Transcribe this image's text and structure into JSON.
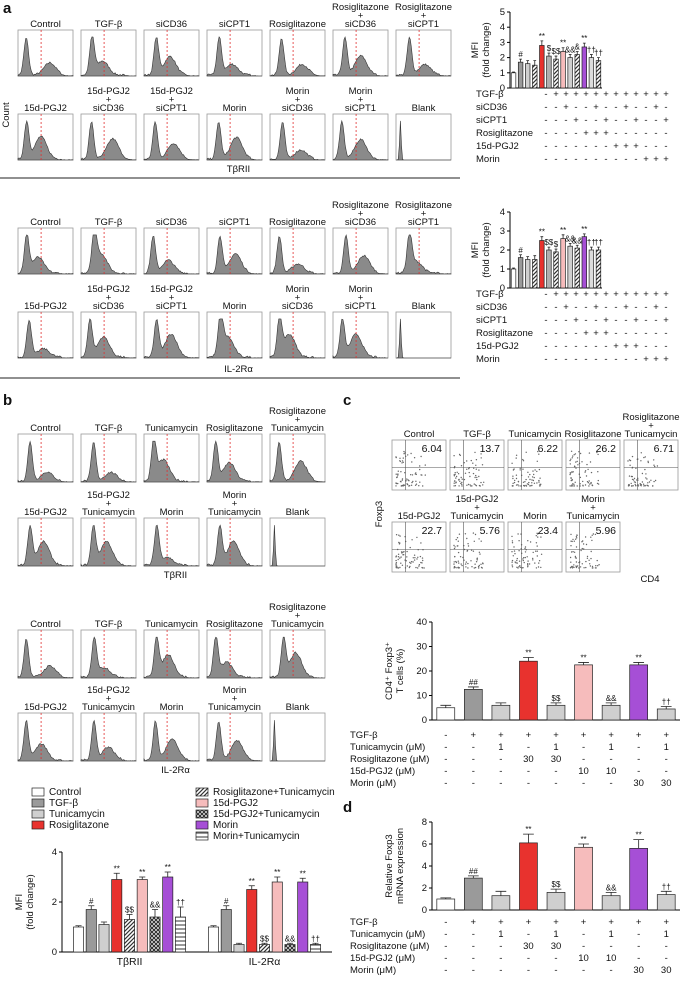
{
  "panel_a": {
    "label": "a",
    "tbrii_histograms": {
      "rows": [
        [
          [
            "Control"
          ],
          [
            "TGF-β"
          ],
          [
            "siCD36"
          ],
          [
            "siCPT1"
          ],
          [
            "Rosiglitazone"
          ],
          [
            "Rosiglitazone",
            "+",
            "siCD36"
          ],
          [
            "Rosiglitazone",
            "+",
            "siCPT1"
          ]
        ],
        [
          [
            "15d-PGJ2"
          ],
          [
            "15d-PGJ2",
            "+",
            "siCD36"
          ],
          [
            "15d-PGJ2",
            "+",
            "siCPT1"
          ],
          [
            "Morin"
          ],
          [
            "Morin",
            "+",
            "siCD36"
          ],
          [
            "Morin",
            "+",
            "siCPT1"
          ],
          [
            "Blank"
          ]
        ]
      ],
      "xlabel": "TβRII",
      "ylabel": "Count"
    },
    "tbrii_chart": {
      "type": "bar",
      "ylabel": [
        "MFI",
        "(fold change)"
      ],
      "ylim": [
        0,
        5
      ],
      "yticks": [
        0,
        1,
        2,
        3,
        4,
        5
      ],
      "values": [
        1.0,
        1.7,
        1.6,
        1.5,
        2.8,
        2.1,
        1.9,
        2.4,
        2.0,
        2.2,
        2.7,
        2.0,
        1.8
      ],
      "errors": [
        0.05,
        0.2,
        0.2,
        0.3,
        0.3,
        0.2,
        0.2,
        0.25,
        0.2,
        0.2,
        0.25,
        0.2,
        0.2
      ],
      "annotations": [
        null,
        "#",
        null,
        null,
        "**",
        "$",
        "$$",
        "**",
        "&&",
        "&",
        "**",
        "††",
        "††"
      ],
      "colors": [
        "#ffffff",
        "#9a9a9a",
        "#cfcfcf",
        "#333333",
        "#e8322e",
        "#b0b0b0",
        "#333333",
        "#f6bcbc",
        "#cfcfcf",
        "#333333",
        "#a64fd6",
        "#dcdcdc",
        "#333333"
      ],
      "hatch": [
        null,
        null,
        null,
        "diag",
        null,
        null,
        "diag",
        null,
        null,
        "diag",
        null,
        null,
        "diag"
      ],
      "table": [
        {
          "name": "TGF-β",
          "cells": [
            "-",
            "+",
            "+",
            "+",
            "+",
            "+",
            "+",
            "+",
            "+",
            "+",
            "+",
            "+",
            "+"
          ]
        },
        {
          "name": "siCD36",
          "cells": [
            "-",
            "-",
            "+",
            "-",
            "-",
            "+",
            "-",
            "-",
            "+",
            "-",
            "-",
            "+",
            "-"
          ]
        },
        {
          "name": "siCPT1",
          "cells": [
            "-",
            "-",
            "-",
            "+",
            "-",
            "-",
            "+",
            "-",
            "-",
            "+",
            "-",
            "-",
            "+"
          ]
        },
        {
          "name": "Rosiglitazone",
          "cells": [
            "-",
            "-",
            "-",
            "-",
            "+",
            "+",
            "+",
            "-",
            "-",
            "-",
            "-",
            "-",
            "-"
          ]
        },
        {
          "name": "15d-PGJ2",
          "cells": [
            "-",
            "-",
            "-",
            "-",
            "-",
            "-",
            "-",
            "+",
            "+",
            "+",
            "-",
            "-",
            "-"
          ]
        },
        {
          "name": "Morin",
          "cells": [
            "-",
            "-",
            "-",
            "-",
            "-",
            "-",
            "-",
            "-",
            "-",
            "-",
            "+",
            "+",
            "+"
          ]
        }
      ]
    },
    "il2ra_histograms": {
      "rows": [
        [
          [
            "Control"
          ],
          [
            "TGF-β"
          ],
          [
            "siCD36"
          ],
          [
            "siCPT1"
          ],
          [
            "Rosiglitazone"
          ],
          [
            "Rosiglitazone",
            "+",
            "siCD36"
          ],
          [
            "Rosiglitazone",
            "+",
            "siCPT1"
          ]
        ],
        [
          [
            "15d-PGJ2"
          ],
          [
            "15d-PGJ2",
            "+",
            "siCD36"
          ],
          [
            "15d-PGJ2",
            "+",
            "siCPT1"
          ],
          [
            "Morin"
          ],
          [
            "Morin",
            "+",
            "siCD36"
          ],
          [
            "Morin",
            "+",
            "siCPT1"
          ],
          [
            "Blank"
          ]
        ]
      ],
      "xlabel": "IL-2Rα"
    },
    "il2ra_chart": {
      "type": "bar",
      "ylabel": [
        "MFI",
        "(fold change)"
      ],
      "ylim": [
        0,
        4
      ],
      "yticks": [
        0,
        1,
        2,
        3,
        4
      ],
      "values": [
        1.0,
        1.6,
        1.5,
        1.5,
        2.5,
        2.0,
        1.9,
        2.6,
        2.2,
        2.1,
        2.7,
        2.0,
        2.0
      ],
      "errors": [
        0.05,
        0.15,
        0.15,
        0.2,
        0.2,
        0.15,
        0.15,
        0.2,
        0.15,
        0.15,
        0.15,
        0.15,
        0.15
      ],
      "annotations": [
        null,
        "#",
        null,
        null,
        "**",
        "$$",
        "$",
        "**",
        "&&",
        "&&",
        "**",
        "††",
        "††"
      ],
      "colors": [
        "#ffffff",
        "#9a9a9a",
        "#cfcfcf",
        "#333333",
        "#e8322e",
        "#b0b0b0",
        "#333333",
        "#f6bcbc",
        "#cfcfcf",
        "#333333",
        "#a64fd6",
        "#dcdcdc",
        "#333333"
      ],
      "hatch": [
        null,
        null,
        null,
        "diag",
        null,
        null,
        "diag",
        null,
        null,
        "diag",
        null,
        null,
        "diag"
      ],
      "table": [
        {
          "name": "TGF-β",
          "cells": [
            "-",
            "+",
            "+",
            "+",
            "+",
            "+",
            "+",
            "+",
            "+",
            "+",
            "+",
            "+",
            "+"
          ]
        },
        {
          "name": "siCD36",
          "cells": [
            "-",
            "-",
            "+",
            "-",
            "-",
            "+",
            "-",
            "-",
            "+",
            "-",
            "-",
            "+",
            "-"
          ]
        },
        {
          "name": "siCPT1",
          "cells": [
            "-",
            "-",
            "-",
            "+",
            "-",
            "-",
            "+",
            "-",
            "-",
            "+",
            "-",
            "-",
            "+"
          ]
        },
        {
          "name": "Rosiglitazone",
          "cells": [
            "-",
            "-",
            "-",
            "-",
            "+",
            "+",
            "+",
            "-",
            "-",
            "-",
            "-",
            "-",
            "-"
          ]
        },
        {
          "name": "15d-PGJ2",
          "cells": [
            "-",
            "-",
            "-",
            "-",
            "-",
            "-",
            "-",
            "+",
            "+",
            "+",
            "-",
            "-",
            "-"
          ]
        },
        {
          "name": "Morin",
          "cells": [
            "-",
            "-",
            "-",
            "-",
            "-",
            "-",
            "-",
            "-",
            "-",
            "-",
            "+",
            "+",
            "+"
          ]
        }
      ]
    }
  },
  "panel_b": {
    "label": "b",
    "tbrii_histograms": {
      "rows": [
        [
          [
            "Control"
          ],
          [
            "TGF-β"
          ],
          [
            "Tunicamycin"
          ],
          [
            "Rosiglitazone"
          ],
          [
            "Rosiglitazone",
            "+",
            "Tunicamycin"
          ]
        ],
        [
          [
            "15d-PGJ2"
          ],
          [
            "15d-PGJ2",
            "+",
            "Tunicamycin"
          ],
          [
            "Morin"
          ],
          [
            "Morin",
            "+",
            "Tunicamycin"
          ],
          [
            "Blank"
          ]
        ]
      ],
      "xlabel": "TβRII"
    },
    "il2ra_histograms": {
      "rows": [
        [
          [
            "Control"
          ],
          [
            "TGF-β"
          ],
          [
            "Tunicamycin"
          ],
          [
            "Rosiglitazone"
          ],
          [
            "Rosiglitazone",
            "+",
            "Tunicamycin"
          ]
        ],
        [
          [
            "15d-PGJ2"
          ],
          [
            "15d-PGJ2",
            "+",
            "Tunicamycin"
          ],
          [
            "Morin"
          ],
          [
            "Morin",
            "+",
            "Tunicamycin"
          ],
          [
            "Blank"
          ]
        ]
      ],
      "xlabel": "IL-2Rα"
    },
    "chart": {
      "type": "grouped_bar",
      "ylabel": [
        "MFI",
        "(fold change)"
      ],
      "ylim": [
        0,
        4
      ],
      "yticks": [
        0,
        2,
        4
      ],
      "categories": [
        "TβRII",
        "IL-2Rα"
      ],
      "series": [
        {
          "name": "Control",
          "color": "#ffffff",
          "hatch": null,
          "values": [
            1.0,
            1.0
          ],
          "errors": [
            0.05,
            0.05
          ],
          "annotations": [
            null,
            null
          ]
        },
        {
          "name": "TGF-β",
          "color": "#9a9a9a",
          "hatch": null,
          "values": [
            1.7,
            1.7
          ],
          "errors": [
            0.15,
            0.15
          ],
          "annotations": [
            "#",
            "#"
          ]
        },
        {
          "name": "Tunicamycin",
          "color": "#cfcfcf",
          "hatch": null,
          "values": [
            1.1,
            0.3
          ],
          "errors": [
            0.1,
            0.05
          ],
          "annotations": [
            null,
            null
          ]
        },
        {
          "name": "Rosiglitazone",
          "color": "#e8322e",
          "hatch": null,
          "values": [
            2.9,
            2.5
          ],
          "errors": [
            0.25,
            0.15
          ],
          "annotations": [
            "**",
            "**"
          ]
        },
        {
          "name": "Rosiglitazone+Tunicamycin",
          "color": "#333333",
          "hatch": "diag",
          "values": [
            1.3,
            0.3
          ],
          "errors": [
            0.2,
            0.05
          ],
          "annotations": [
            "$$",
            "$$"
          ]
        },
        {
          "name": "15d-PGJ2",
          "color": "#f6bcbc",
          "hatch": null,
          "values": [
            2.9,
            2.8
          ],
          "errors": [
            0.1,
            0.2
          ],
          "annotations": [
            "**",
            "**"
          ]
        },
        {
          "name": "15d-PGJ2+Tunicamycin",
          "color": "#333333",
          "hatch": "cross",
          "values": [
            1.4,
            0.3
          ],
          "errors": [
            0.3,
            0.05
          ],
          "annotations": [
            "&&",
            "&&"
          ]
        },
        {
          "name": "Morin",
          "color": "#a64fd6",
          "hatch": null,
          "values": [
            3.0,
            2.8
          ],
          "errors": [
            0.2,
            0.15
          ],
          "annotations": [
            "**",
            "**"
          ]
        },
        {
          "name": "Morin+Tunicamycin",
          "color": "#555555",
          "hatch": "horiz",
          "values": [
            1.4,
            0.3
          ],
          "errors": [
            0.4,
            0.05
          ],
          "annotations": [
            "††",
            "††"
          ]
        }
      ]
    }
  },
  "panel_c": {
    "label": "c",
    "dot_plots": {
      "rows": [
        [
          [
            "Control"
          ],
          [
            "TGF-β"
          ],
          [
            "Tunicamycin"
          ],
          [
            "Rosiglitazone"
          ],
          [
            "Rosiglitazone",
            "+",
            "Tunicamycin"
          ]
        ],
        [
          [
            "15d-PGJ2"
          ],
          [
            "15d-PGJ2",
            "+",
            "Tunicamycin"
          ],
          [
            "Morin"
          ],
          [
            "Morin",
            "+",
            "Tunicamycin"
          ]
        ]
      ],
      "percentages": [
        [
          "6.04",
          "13.7",
          "6.22",
          "26.2",
          "6.71"
        ],
        [
          "22.7",
          "5.76",
          "23.4",
          "5.96"
        ]
      ],
      "xlabel": "CD4",
      "ylabel": "Foxp3"
    },
    "chart": {
      "type": "bar",
      "ylabel": [
        "CD4⁺ Foxp3⁺",
        "T cells (%)"
      ],
      "ylim": [
        0,
        40
      ],
      "yticks": [
        0,
        10,
        20,
        30,
        40
      ],
      "values": [
        5.0,
        12.5,
        6.0,
        24.0,
        6.0,
        22.5,
        6.0,
        22.5,
        4.5
      ],
      "errors": [
        1.0,
        1.0,
        1.0,
        1.5,
        1.0,
        1.0,
        1.0,
        1.0,
        1.0
      ],
      "annotations": [
        null,
        "##",
        null,
        "**",
        "$$",
        "**",
        "&&",
        "**",
        "††"
      ],
      "colors": [
        "#ffffff",
        "#9a9a9a",
        "#cfcfcf",
        "#e8322e",
        "#cfcfcf",
        "#f6bcbc",
        "#cfcfcf",
        "#a64fd6",
        "#cfcfcf"
      ],
      "hatch": [
        null,
        null,
        null,
        null,
        null,
        null,
        null,
        null,
        null
      ],
      "table": [
        {
          "name": "TGF-β",
          "cells": [
            "-",
            "+",
            "+",
            "+",
            "+",
            "+",
            "+",
            "+",
            "+"
          ]
        },
        {
          "name": "Tunicamycin (μM)",
          "cells": [
            "-",
            "-",
            "1",
            "-",
            "1",
            "-",
            "1",
            "-",
            "1"
          ]
        },
        {
          "name": "Rosiglitazone (μM)",
          "cells": [
            "-",
            "-",
            "-",
            "30",
            "30",
            "-",
            "-",
            "-",
            "-"
          ]
        },
        {
          "name": "15d-PGJ2 (μM)",
          "cells": [
            "-",
            "-",
            "-",
            "-",
            "-",
            "10",
            "10",
            "-",
            "-"
          ]
        },
        {
          "name": "Morin (μM)",
          "cells": [
            "-",
            "-",
            "-",
            "-",
            "-",
            "-",
            "-",
            "30",
            "30"
          ]
        }
      ]
    }
  },
  "panel_d": {
    "label": "d",
    "chart": {
      "type": "bar",
      "ylabel": [
        "Relative Foxp3",
        "mRNA expression"
      ],
      "ylim": [
        0,
        8
      ],
      "yticks": [
        0,
        2,
        4,
        6,
        8
      ],
      "values": [
        1.0,
        2.9,
        1.3,
        6.1,
        1.6,
        5.7,
        1.3,
        5.6,
        1.4
      ],
      "errors": [
        0.1,
        0.2,
        0.4,
        0.8,
        0.3,
        0.3,
        0.3,
        0.8,
        0.3
      ],
      "annotations": [
        null,
        "##",
        null,
        "**",
        "$$",
        "**",
        "&&",
        "**",
        "††"
      ],
      "colors": [
        "#ffffff",
        "#9a9a9a",
        "#cfcfcf",
        "#e8322e",
        "#cfcfcf",
        "#f6bcbc",
        "#cfcfcf",
        "#a64fd6",
        "#cfcfcf"
      ],
      "hatch": [
        null,
        null,
        null,
        null,
        null,
        null,
        null,
        null,
        null
      ],
      "table": [
        {
          "name": "TGF-β",
          "cells": [
            "-",
            "+",
            "+",
            "+",
            "+",
            "+",
            "+",
            "+",
            "+"
          ]
        },
        {
          "name": "Tunicamycin (μM)",
          "cells": [
            "-",
            "-",
            "1",
            "-",
            "1",
            "-",
            "1",
            "-",
            "1"
          ]
        },
        {
          "name": "Rosiglitazone (μM)",
          "cells": [
            "-",
            "-",
            "-",
            "30",
            "30",
            "-",
            "-",
            "-",
            "-"
          ]
        },
        {
          "name": "15d-PGJ2 (μM)",
          "cells": [
            "-",
            "-",
            "-",
            "-",
            "-",
            "10",
            "10",
            "-",
            "-"
          ]
        },
        {
          "name": "Morin (μM)",
          "cells": [
            "-",
            "-",
            "-",
            "-",
            "-",
            "-",
            "-",
            "30",
            "30"
          ]
        }
      ]
    }
  }
}
